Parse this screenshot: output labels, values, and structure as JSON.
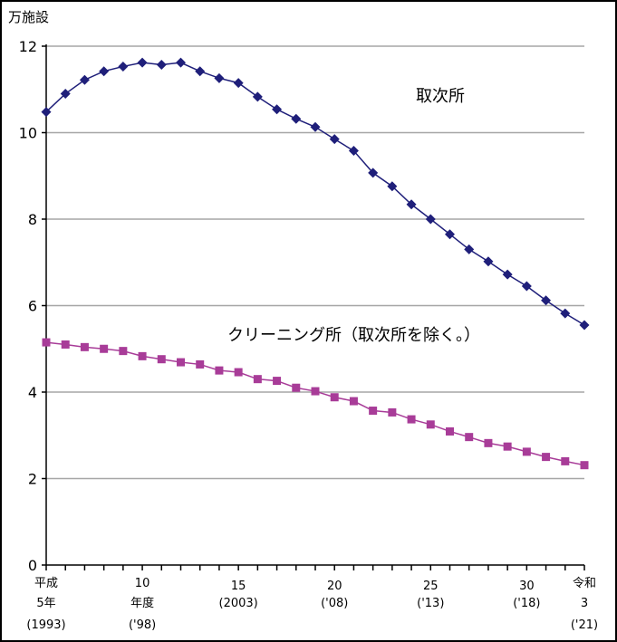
{
  "chart_data": {
    "type": "line",
    "ylabel": "万施設",
    "ylim": [
      0,
      12
    ],
    "yticks": [
      0,
      2,
      4,
      6,
      8,
      10,
      12
    ],
    "grid": true,
    "x": [
      1993,
      1994,
      1995,
      1996,
      1997,
      1998,
      1999,
      2000,
      2001,
      2002,
      2003,
      2004,
      2005,
      2006,
      2007,
      2008,
      2009,
      2010,
      2011,
      2012,
      2013,
      2014,
      2015,
      2016,
      2017,
      2018,
      2019,
      2020,
      2021
    ],
    "xtick_labels": [
      {
        "x": 1993,
        "lines": [
          "平成",
          "5年",
          "(1993)"
        ]
      },
      {
        "x": 1998,
        "lines": [
          "10",
          "年度",
          "('98)"
        ]
      },
      {
        "x": 2003,
        "lines": [
          "15",
          "(2003)"
        ]
      },
      {
        "x": 2008,
        "lines": [
          "20",
          "('08)"
        ]
      },
      {
        "x": 2013,
        "lines": [
          "25",
          "('13)"
        ]
      },
      {
        "x": 2018,
        "lines": [
          "30",
          "('18)"
        ]
      },
      {
        "x": 2021,
        "lines": [
          "令和",
          "3",
          "('21)"
        ]
      }
    ],
    "series": [
      {
        "name": "取次所",
        "color": "#1f1f7a",
        "marker": "diamond",
        "values": [
          10.48,
          10.9,
          11.22,
          11.42,
          11.53,
          11.62,
          11.57,
          11.62,
          11.42,
          11.26,
          11.15,
          10.83,
          10.54,
          10.32,
          10.13,
          9.85,
          9.58,
          9.07,
          8.76,
          8.34,
          8.0,
          7.65,
          7.3,
          7.02,
          6.72,
          6.45,
          6.12,
          5.82,
          5.55
        ]
      },
      {
        "name": "クリーニング所（取次所を除く。）",
        "color": "#a83c98",
        "marker": "square",
        "values": [
          5.15,
          5.1,
          5.04,
          5.0,
          4.95,
          4.83,
          4.76,
          4.69,
          4.64,
          4.5,
          4.46,
          4.3,
          4.26,
          4.1,
          4.02,
          3.88,
          3.79,
          3.57,
          3.53,
          3.37,
          3.25,
          3.09,
          2.96,
          2.82,
          2.74,
          2.62,
          2.5,
          2.4,
          2.31
        ]
      }
    ]
  }
}
